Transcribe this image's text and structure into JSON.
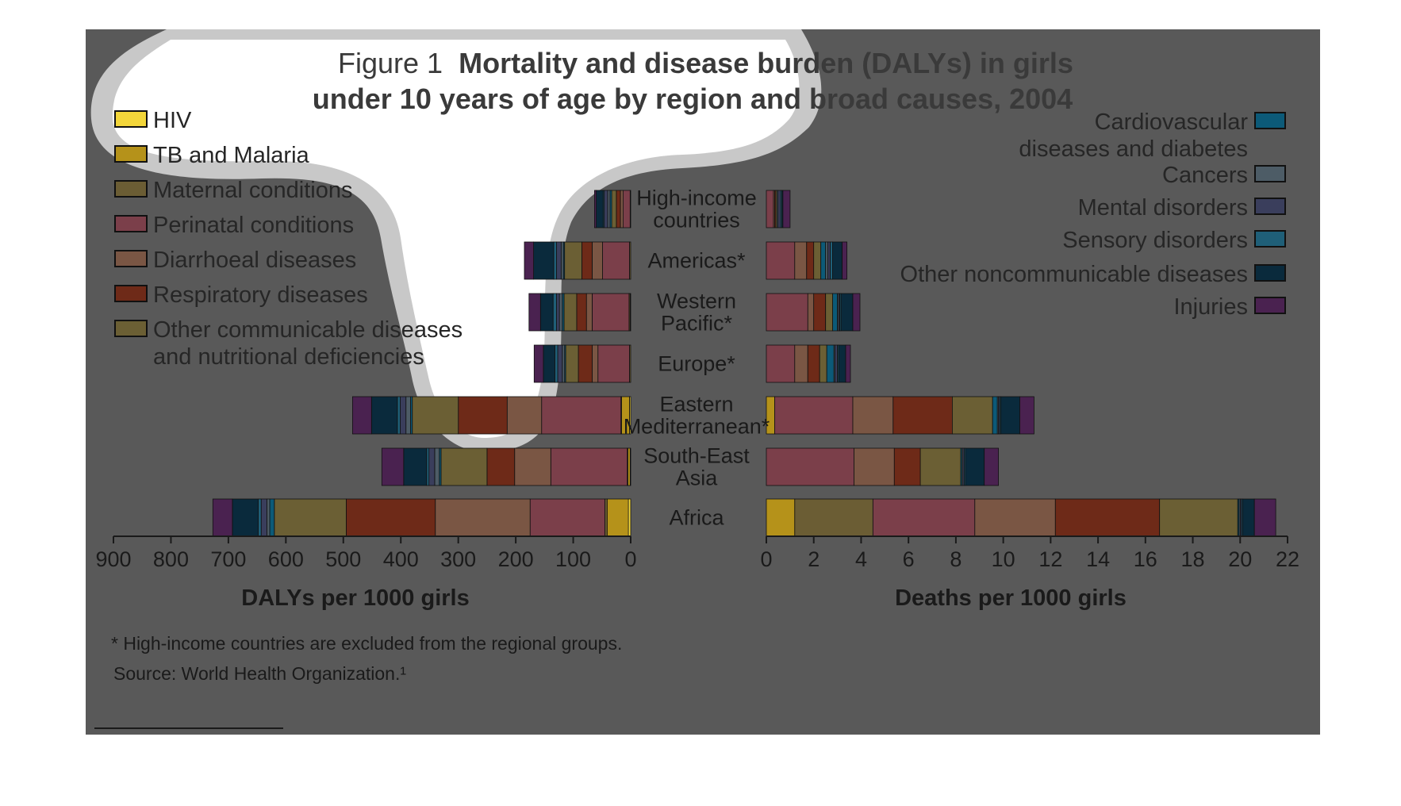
{
  "chart_data": {
    "type": "bar",
    "title_prefix": "Figure 1",
    "title_bold_line1": "Mortality and disease burden (DALYs) in girls",
    "title_bold_line2": "under 10 years of age by region and broad causes, 2004",
    "left_xlabel": "DALYs per 1000 girls",
    "right_xlabel": "Deaths per 1000 girls",
    "left_xlim": [
      0,
      900
    ],
    "right_xlim": [
      0,
      22
    ],
    "left_ticks": [
      "900",
      "800",
      "700",
      "600",
      "500",
      "400",
      "300",
      "200",
      "100",
      "0"
    ],
    "right_ticks": [
      "0",
      "2",
      "4",
      "6",
      "8",
      "10",
      "12",
      "14",
      "16",
      "18",
      "20",
      "22"
    ],
    "footnote": "* High-income countries are excluded from the regional groups.",
    "source": "Source: World Health Organization.¹",
    "region_labels": [
      [
        "High-income",
        "countries"
      ],
      [
        "Americas*"
      ],
      [
        "Western",
        "Pacific*"
      ],
      [
        "Europe*"
      ],
      [
        "Eastern",
        "Mediterranean*"
      ],
      [
        "South-East",
        "Asia"
      ],
      [
        "Africa"
      ]
    ],
    "legend_left": [
      {
        "label": [
          "HIV"
        ],
        "color": "#f3d63a"
      },
      {
        "label": [
          "TB and Malaria"
        ],
        "color": "#b5921a"
      },
      {
        "label": [
          "Maternal conditions"
        ],
        "color": "#6b5d34"
      },
      {
        "label": [
          "Perinatal conditions"
        ],
        "color": "#7b3f4a"
      },
      {
        "label": [
          "Diarrhoeal diseases"
        ],
        "color": "#7a5644"
      },
      {
        "label": [
          "Respiratory diseases"
        ],
        "color": "#6e2a18"
      },
      {
        "label": [
          "Other communicable diseases",
          "and nutritional deficiencies"
        ],
        "color": "#6b5f34"
      }
    ],
    "legend_right": [
      {
        "label": [
          "Cardiovascular",
          "diseases and diabetes"
        ],
        "color": "#0c5a78"
      },
      {
        "label": [
          "Cancers"
        ],
        "color": "#4d5c66"
      },
      {
        "label": [
          "Mental disorders"
        ],
        "color": "#3a3e5c"
      },
      {
        "label": [
          "Sensory disorders"
        ],
        "color": "#1f5f78"
      },
      {
        "label": [
          "Other noncommunicable diseases"
        ],
        "color": "#0a2a3c"
      },
      {
        "label": [
          "Injuries"
        ],
        "color": "#4a2250"
      }
    ],
    "segment_order": [
      "HIV",
      "TB and Malaria",
      "Maternal conditions",
      "Perinatal conditions",
      "Diarrhoeal diseases",
      "Respiratory diseases",
      "Other communicable diseases and nutritional deficiencies",
      "Cardiovascular diseases and diabetes",
      "Cancers",
      "Mental disorders",
      "Sensory disorders",
      "Other noncommunicable diseases",
      "Injuries"
    ],
    "dalys": [
      [
        0,
        1,
        0,
        12,
        5,
        7,
        8,
        3,
        4,
        6,
        2,
        12,
        3
      ],
      [
        0,
        0,
        2,
        47,
        18,
        18,
        30,
        2,
        4,
        8,
        5,
        35,
        16
      ],
      [
        0,
        1,
        2,
        64,
        10,
        17,
        22,
        3,
        5,
        5,
        6,
        22,
        20
      ],
      [
        0,
        0,
        2,
        55,
        10,
        24,
        22,
        2,
        4,
        8,
        5,
        20,
        16
      ],
      [
        2,
        14,
        1,
        138,
        60,
        85,
        80,
        3,
        8,
        10,
        5,
        45,
        33
      ],
      [
        1,
        4,
        1,
        133,
        63,
        48,
        80,
        3,
        8,
        10,
        4,
        40,
        38
      ],
      [
        4,
        37,
        4,
        130,
        165,
        155,
        125,
        8,
        5,
        10,
        5,
        45,
        34
      ]
    ],
    "deaths": [
      [
        0,
        0,
        0,
        0.3,
        0.05,
        0.05,
        0.05,
        0,
        0.05,
        0.1,
        0.05,
        0.05,
        0.3
      ],
      [
        0,
        0,
        0,
        1.2,
        0.5,
        0.3,
        0.3,
        0.2,
        0.1,
        0.1,
        0.1,
        0.4,
        0.2
      ],
      [
        0,
        0,
        0,
        1.75,
        0.25,
        0.5,
        0.3,
        0.2,
        0.05,
        0.05,
        0.05,
        0.5,
        0.3
      ],
      [
        0,
        0,
        0,
        1.2,
        0.55,
        0.5,
        0.3,
        0.3,
        0.05,
        0.1,
        0.05,
        0.3,
        0.2
      ],
      [
        0,
        0.35,
        0,
        3.3,
        1.7,
        2.5,
        1.7,
        0.2,
        0.05,
        0.05,
        0.05,
        0.8,
        0.6
      ],
      [
        0,
        0,
        0,
        3.7,
        1.7,
        1.1,
        1.7,
        0.05,
        0.05,
        0.05,
        0.05,
        0.8,
        0.6
      ],
      [
        0,
        1.2,
        3.3,
        4.3,
        3.4,
        4.4,
        3.3,
        0.05,
        0.05,
        0.05,
        0.05,
        0.5,
        0.9
      ]
    ]
  }
}
